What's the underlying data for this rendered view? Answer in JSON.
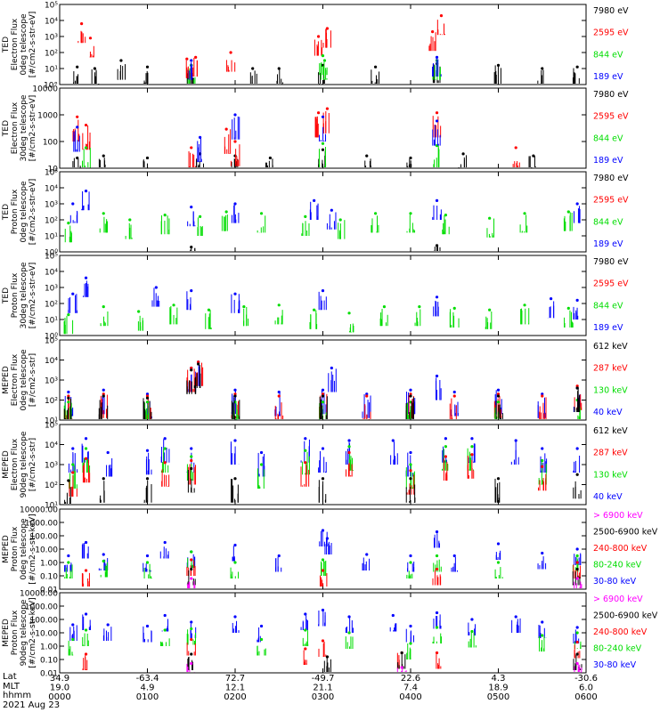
{
  "chart_data": [
    {
      "type": "scatter",
      "ylabel": [
        "TED",
        "Electron Flux",
        "0deg telescope",
        "[#/cm2-s-str-eV]"
      ],
      "scale": "log",
      "yticks": [
        "10°",
        "10¹",
        "10²",
        "10³",
        "10⁴",
        "10⁵"
      ],
      "legend": [
        {
          "label": "7980 eV",
          "color": "#000000"
        },
        {
          "label": "2595 eV",
          "color": "#ff0000"
        },
        {
          "label": "844 eV",
          "color": "#00dd00"
        },
        {
          "label": "189 eV",
          "color": "#0000ff"
        }
      ],
      "ylim_log": [
        0,
        5
      ],
      "series": [
        {
          "name": "7980 eV",
          "x": [
            0.2,
            0.4,
            0.7,
            1.0,
            1.5,
            2.2,
            2.5,
            3.0,
            3.6,
            4.3,
            5.0,
            5.5,
            5.9
          ],
          "y": [
            1.1,
            1.0,
            1.5,
            1.1,
            1.2,
            1.0,
            1.0,
            1.2,
            1.1,
            1.3,
            1.2,
            1.0,
            1.1
          ]
        },
        {
          "name": "2595 eV",
          "x": [
            0.25,
            0.35,
            1.45,
            1.55,
            1.95,
            2.95,
            3.05,
            4.25,
            4.35
          ],
          "y": [
            3.8,
            2.9,
            1.6,
            1.7,
            2.0,
            3.0,
            3.5,
            3.3,
            4.3
          ]
        },
        {
          "name": "844 eV",
          "x": [
            1.5,
            3.0,
            3.02,
            4.3
          ],
          "y": [
            1.2,
            1.8,
            1.5,
            1.5
          ]
        },
        {
          "name": "189 eV",
          "x": [
            1.5,
            4.3
          ],
          "y": [
            1.5,
            1.7
          ]
        }
      ]
    },
    {
      "type": "scatter",
      "ylabel": [
        "TED",
        "Electron Flux",
        "30deg telescope",
        "[#/cm2-s-str-eV]"
      ],
      "scale": "log",
      "yticks": [
        "10",
        "100",
        "1000",
        "10000"
      ],
      "legend": [
        {
          "label": "7980 eV",
          "color": "#000000"
        },
        {
          "label": "2595 eV",
          "color": "#ff0000"
        },
        {
          "label": "844 eV",
          "color": "#00dd00"
        },
        {
          "label": "189 eV",
          "color": "#0000ff"
        }
      ],
      "ylim_log": [
        0.3,
        4.2
      ],
      "series": [
        {
          "name": "7980 eV",
          "x": [
            0.2,
            0.5,
            1.0,
            1.6,
            2.0,
            2.4,
            3.0,
            3.5,
            4.0,
            4.6,
            5.4
          ],
          "y": [
            0.8,
            0.9,
            0.8,
            1.0,
            0.9,
            0.8,
            1.2,
            0.9,
            0.8,
            1.0,
            0.9
          ]
        },
        {
          "name": "2595 eV",
          "x": [
            0.2,
            0.3,
            1.5,
            1.9,
            2.0,
            2.95,
            3.05,
            4.3,
            5.2
          ],
          "y": [
            2.8,
            2.4,
            1.3,
            2.2,
            1.6,
            3.0,
            3.2,
            3.0,
            1.3
          ]
        },
        {
          "name": "844 eV",
          "x": [
            0.3,
            3.0,
            4.3
          ],
          "y": [
            1.3,
            1.5,
            1.4
          ]
        },
        {
          "name": "189 eV",
          "x": [
            0.2,
            1.6,
            2.0,
            3.0,
            4.3
          ],
          "y": [
            2.3,
            1.8,
            2.9,
            2.8,
            2.6
          ]
        }
      ]
    },
    {
      "type": "scatter",
      "ylabel": [
        "TED",
        "Proton Flux",
        "0deg telescope",
        "[#/cm2-s-str-eV]"
      ],
      "scale": "log",
      "yticks": [
        "10⁰",
        "10¹",
        "10²",
        "10³",
        "10⁴",
        "10⁵"
      ],
      "legend": [
        {
          "label": "7980 eV",
          "color": "#000000"
        },
        {
          "label": "2595 eV",
          "color": "#ff0000"
        },
        {
          "label": "844 eV",
          "color": "#00dd00"
        },
        {
          "label": "189 eV",
          "color": "#0000ff"
        }
      ],
      "ylim_log": [
        0,
        5
      ],
      "series": [
        {
          "name": "844 eV",
          "x": [
            0.1,
            0.5,
            0.8,
            1.2,
            1.6,
            1.9,
            2.3,
            2.8,
            3.2,
            3.6,
            4.0,
            4.4,
            4.9,
            5.3,
            5.8
          ],
          "y": [
            1.8,
            2.4,
            2.0,
            2.3,
            2.2,
            2.5,
            2.4,
            2.2,
            2.0,
            2.4,
            2.4,
            2.3,
            2.1,
            2.4,
            2.5
          ]
        },
        {
          "name": "189 eV",
          "x": [
            0.15,
            0.3,
            1.5,
            2.0,
            2.9,
            3.1,
            4.3,
            5.9
          ],
          "y": [
            3.0,
            3.8,
            2.8,
            3.0,
            3.2,
            2.6,
            3.2,
            3.0
          ]
        },
        {
          "name": "7980 eV",
          "x": [
            1.5,
            4.3
          ],
          "y": [
            0.3,
            0.4
          ]
        }
      ]
    },
    {
      "type": "scatter",
      "ylabel": [
        "TED",
        "Proton Flux",
        "30deg telescope",
        "[#/cm2-s-str-eV]"
      ],
      "scale": "log",
      "yticks": [
        "10⁰",
        "10¹",
        "10²",
        "10³",
        "10⁴",
        "10⁵"
      ],
      "legend": [
        {
          "label": "7980 eV",
          "color": "#000000"
        },
        {
          "label": "2595 eV",
          "color": "#ff0000"
        },
        {
          "label": "844 eV",
          "color": "#00dd00"
        },
        {
          "label": "189 eV",
          "color": "#0000ff"
        }
      ],
      "ylim_log": [
        0,
        5
      ],
      "series": [
        {
          "name": "844 eV",
          "x": [
            0.1,
            0.5,
            0.9,
            1.3,
            1.7,
            2.1,
            2.5,
            2.9,
            3.3,
            3.7,
            4.1,
            4.5,
            4.9,
            5.3,
            5.8
          ],
          "y": [
            1.3,
            1.8,
            1.5,
            1.9,
            1.6,
            1.8,
            1.9,
            1.6,
            1.4,
            1.8,
            1.8,
            1.7,
            1.6,
            1.9,
            1.7
          ]
        },
        {
          "name": "189 eV",
          "x": [
            0.15,
            0.3,
            1.1,
            1.5,
            2.0,
            3.0,
            4.3,
            5.6,
            5.9
          ],
          "y": [
            2.6,
            3.6,
            3.0,
            2.8,
            2.6,
            2.8,
            2.4,
            2.3,
            2.2
          ]
        }
      ]
    },
    {
      "type": "scatter",
      "ylabel": [
        "MEPED",
        "Electron Flux",
        "0deg telescope",
        "[#/cm2-s-str]"
      ],
      "scale": "log",
      "yticks": [
        "10¹",
        "10²",
        "10³",
        "10⁴",
        "10⁵"
      ],
      "legend": [
        {
          "label": "612 keV",
          "color": "#000000"
        },
        {
          "label": "287 keV",
          "color": "#ff0000"
        },
        {
          "label": "130 keV",
          "color": "#00dd00"
        },
        {
          "label": "40 keV",
          "color": "#0000ff"
        }
      ],
      "ylim_log": [
        1,
        5
      ],
      "series": [
        {
          "name": "40 keV",
          "x": [
            0.1,
            0.5,
            1.0,
            1.5,
            1.58,
            2.0,
            2.5,
            3.0,
            3.1,
            3.5,
            4.0,
            4.3,
            4.5,
            5.0,
            5.5,
            5.9
          ],
          "y": [
            2.4,
            2.5,
            2.3,
            3.6,
            3.9,
            2.5,
            2.4,
            2.5,
            3.6,
            2.3,
            2.5,
            3.2,
            2.4,
            2.5,
            2.3,
            2.6
          ]
        },
        {
          "name": "287 keV",
          "x": [
            0.1,
            0.5,
            1.0,
            1.5,
            1.58,
            2.0,
            2.5,
            3.0,
            3.5,
            4.0,
            4.5,
            5.0,
            5.5,
            5.9
          ],
          "y": [
            2.2,
            2.3,
            2.2,
            3.6,
            3.9,
            2.3,
            2.2,
            2.3,
            2.2,
            2.3,
            2.2,
            2.3,
            2.2,
            2.7
          ]
        },
        {
          "name": "130 keV",
          "x": [
            0.1,
            1.0,
            2.0,
            3.0,
            4.0,
            5.0,
            5.9
          ],
          "y": [
            1.9,
            1.9,
            1.9,
            1.9,
            1.9,
            1.9,
            2.0
          ]
        },
        {
          "name": "612 keV",
          "x": [
            0.1,
            0.5,
            1.0,
            1.5,
            1.58,
            2.0,
            3.0,
            4.0,
            5.0,
            5.9
          ],
          "y": [
            2.1,
            2.2,
            2.1,
            3.5,
            3.8,
            2.2,
            2.2,
            2.2,
            2.2,
            2.6
          ]
        }
      ]
    },
    {
      "type": "scatter",
      "ylabel": [
        "MEPED",
        "Electron Flux",
        "90deg telescope",
        "[#/cm2-s-str]"
      ],
      "scale": "log",
      "yticks": [
        "10¹",
        "10²",
        "10³",
        "10⁴",
        "10⁵"
      ],
      "legend": [
        {
          "label": "612 keV",
          "color": "#000000"
        },
        {
          "label": "287 keV",
          "color": "#ff0000"
        },
        {
          "label": "130 keV",
          "color": "#00dd00"
        },
        {
          "label": "40 keV",
          "color": "#0000ff"
        }
      ],
      "ylim_log": [
        1,
        5
      ],
      "series": [
        {
          "name": "40 keV",
          "x": [
            0.15,
            0.3,
            0.55,
            1.0,
            1.2,
            1.5,
            2.0,
            2.3,
            2.8,
            3.0,
            3.3,
            3.8,
            4.0,
            4.4,
            4.7,
            5.2,
            5.5,
            5.9
          ],
          "y": [
            3.8,
            4.3,
            3.6,
            3.7,
            4.3,
            3.8,
            4.2,
            3.6,
            4.3,
            3.8,
            4.2,
            4.2,
            3.6,
            4.3,
            4.3,
            4.2,
            3.8,
            3.8
          ]
        },
        {
          "name": "130 keV",
          "x": [
            0.15,
            0.3,
            1.2,
            1.5,
            2.3,
            2.8,
            3.3,
            4.0,
            4.4,
            4.7,
            5.5
          ],
          "y": [
            3.0,
            3.8,
            3.8,
            3.4,
            3.0,
            3.7,
            3.9,
            3.0,
            3.9,
            3.9,
            3.2
          ]
        },
        {
          "name": "287 keV",
          "x": [
            0.15,
            0.3,
            1.2,
            1.5,
            2.8,
            3.3,
            4.0,
            4.4,
            4.7,
            5.5
          ],
          "y": [
            2.6,
            3.3,
            3.1,
            3.2,
            3.1,
            3.6,
            2.7,
            3.4,
            3.5,
            2.9
          ]
        },
        {
          "name": "612 keV",
          "x": [
            0.1,
            0.5,
            1.0,
            1.5,
            2.0,
            3.0,
            4.0,
            5.0,
            5.9
          ],
          "y": [
            2.2,
            2.3,
            2.3,
            2.8,
            2.3,
            2.3,
            2.3,
            2.3,
            2.5
          ]
        }
      ]
    },
    {
      "type": "scatter",
      "ylabel": [
        "MEPED",
        "Proton Flux",
        "0deg telescope",
        "[#/cm2-s-str-keV]"
      ],
      "scale": "log",
      "yticks": [
        "0.01",
        "0.10",
        "1.00",
        "10.00",
        "100.00",
        "1000.00",
        "10000.00"
      ],
      "legend": [
        {
          "label": "> 6900 keV",
          "color": "#ff00ff"
        },
        {
          "label": "2500-6900 keV",
          "color": "#000000"
        },
        {
          "label": "240-800 keV",
          "color": "#ff0000"
        },
        {
          "label": "80-240 keV",
          "color": "#00dd00"
        },
        {
          "label": "30-80 keV",
          "color": "#0000ff"
        }
      ],
      "ylim_log": [
        -2,
        4
      ],
      "series": [
        {
          "name": "30-80 keV",
          "x": [
            0.1,
            0.3,
            0.5,
            1.0,
            1.2,
            1.5,
            2.0,
            2.5,
            3.0,
            3.05,
            3.5,
            4.0,
            4.3,
            4.5,
            5.0,
            5.5,
            5.9
          ],
          "y": [
            0.5,
            1.5,
            0.6,
            0.5,
            1.5,
            0.8,
            1.3,
            0.5,
            2.4,
            1.8,
            0.6,
            0.5,
            2.3,
            0.5,
            1.4,
            0.7,
            1.0
          ]
        },
        {
          "name": "80-240 keV",
          "x": [
            0.1,
            0.5,
            1.0,
            1.5,
            2.0,
            3.0,
            4.0,
            4.3,
            5.0,
            5.9
          ],
          "y": [
            0.0,
            0.1,
            0.0,
            0.8,
            0.0,
            0.2,
            0.0,
            0.5,
            0.0,
            0.5
          ]
        },
        {
          "name": "240-800 keV",
          "x": [
            0.3,
            1.5,
            3.0,
            4.3,
            5.9
          ],
          "y": [
            -0.6,
            0.2,
            -0.6,
            -0.5,
            0.0
          ]
        },
        {
          "name": "2500-6900 keV",
          "x": [
            1.5,
            5.9
          ],
          "y": [
            -0.5,
            -0.5
          ]
        },
        {
          "name": "> 6900 keV",
          "x": [
            1.5,
            5.9
          ],
          "y": [
            -1.2,
            -1.2
          ]
        }
      ]
    },
    {
      "type": "scatter",
      "ylabel": [
        "MEPED",
        "Proton Flux",
        "90deg telescope",
        "[#/cm2-s-str-keV]"
      ],
      "scale": "log",
      "yticks": [
        "0.01",
        "0.10",
        "1.00",
        "10.00",
        "100.00",
        "1000.00",
        "10000.00"
      ],
      "legend": [
        {
          "label": "> 6900 keV",
          "color": "#ff00ff"
        },
        {
          "label": "2500-6900 keV",
          "color": "#000000"
        },
        {
          "label": "240-800 keV",
          "color": "#ff0000"
        },
        {
          "label": "80-240 keV",
          "color": "#00dd00"
        },
        {
          "label": "30-80 keV",
          "color": "#0000ff"
        }
      ],
      "ylim_log": [
        -2,
        4
      ],
      "series": [
        {
          "name": "30-80 keV",
          "x": [
            0.15,
            0.3,
            0.55,
            1.0,
            1.2,
            1.5,
            2.0,
            2.3,
            2.8,
            3.0,
            3.3,
            3.8,
            4.0,
            4.3,
            4.7,
            5.2,
            5.5,
            5.9
          ],
          "y": [
            1.6,
            2.4,
            1.6,
            1.5,
            2.3,
            1.8,
            2.2,
            1.5,
            2.4,
            2.7,
            2.2,
            2.3,
            1.5,
            2.5,
            2.0,
            2.2,
            1.8,
            1.4
          ]
        },
        {
          "name": "80-240 keV",
          "x": [
            0.15,
            0.3,
            1.2,
            1.5,
            2.3,
            2.8,
            3.3,
            4.0,
            4.3,
            4.7,
            5.5,
            5.9
          ],
          "y": [
            0.5,
            1.2,
            1.2,
            1.3,
            0.5,
            1.2,
            1.0,
            0.2,
            1.4,
            1.1,
            0.8,
            1.0
          ]
        },
        {
          "name": "240-800 keV",
          "x": [
            0.3,
            1.5,
            2.8,
            3.0,
            3.9,
            4.3,
            5.9
          ],
          "y": [
            -0.6,
            0.5,
            -0.2,
            0.4,
            -0.5,
            -0.5,
            0.3
          ]
        },
        {
          "name": "2500-6900 keV",
          "x": [
            1.5,
            3.05,
            3.9,
            5.9
          ],
          "y": [
            -0.6,
            -0.8,
            -0.5,
            -0.6
          ]
        },
        {
          "name": "> 6900 keV",
          "x": [
            1.5,
            3.9,
            5.9
          ],
          "y": [
            -1.3,
            -1.6,
            -1.3
          ]
        }
      ]
    }
  ],
  "footer": {
    "row_labels": [
      "Lat",
      "MLT",
      "hhmm",
      "2021 Aug 23"
    ],
    "lat": [
      "34.9",
      "-63.4",
      "72.7",
      "-49.7",
      "22.6",
      "4.3",
      "-30.6"
    ],
    "mlt": [
      "19.0",
      "4.9",
      "12.1",
      "21.1",
      "7.4",
      "18.9",
      "6.0"
    ],
    "hhmm": [
      "0000",
      "0100",
      "0200",
      "0300",
      "0400",
      "0500",
      "0600"
    ]
  },
  "x_axis": {
    "range_hours": [
      0,
      6
    ],
    "ticks_hours": [
      0,
      1,
      2,
      3,
      4,
      5,
      6
    ]
  }
}
